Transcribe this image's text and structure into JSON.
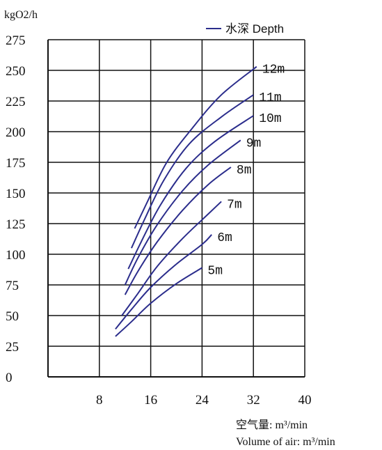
{
  "chart_data": {
    "type": "line",
    "ylabel": "kgO2/h",
    "legend_title": "水深 Depth",
    "legend_position": "top-right",
    "xlabel_line1": "空气量:  m³/min",
    "xlabel_line2": "Volume of air: m³/min",
    "xlim": [
      0,
      40
    ],
    "ylim": [
      0,
      275
    ],
    "x_ticks": [
      "8",
      "16",
      "24",
      "32",
      "40"
    ],
    "y_ticks": [
      "0",
      "25",
      "50",
      "75",
      "100",
      "125",
      "150",
      "175",
      "200",
      "225",
      "250",
      "275"
    ],
    "grid": true,
    "line_color": "#2b2d8c",
    "series": [
      {
        "name": "5m",
        "x": [
          10.5,
          13,
          16,
          20,
          24
        ],
        "y": [
          33,
          45,
          60,
          76,
          89
        ]
      },
      {
        "name": "6m",
        "x": [
          10.5,
          13,
          16,
          20,
          24,
          25.5
        ],
        "y": [
          39,
          55,
          73,
          92,
          108,
          116
        ]
      },
      {
        "name": "7m",
        "x": [
          11.5,
          14,
          17,
          21,
          25,
          27
        ],
        "y": [
          50,
          68,
          90,
          113,
          133,
          143
        ]
      },
      {
        "name": "8m",
        "x": [
          12,
          14,
          17,
          21,
          25,
          28.5
        ],
        "y": [
          67,
          86,
          110,
          136,
          157,
          171
        ]
      },
      {
        "name": "9m",
        "x": [
          12,
          14,
          17,
          21,
          25,
          30
        ],
        "y": [
          75,
          97,
          124,
          152,
          173,
          193
        ]
      },
      {
        "name": "10m",
        "x": [
          12.5,
          14.5,
          17.5,
          21.5,
          26,
          32
        ],
        "y": [
          88,
          110,
          140,
          170,
          192,
          213
        ]
      },
      {
        "name": "11m",
        "x": [
          13,
          15,
          18,
          22,
          27,
          32
        ],
        "y": [
          105,
          128,
          160,
          190,
          212,
          230
        ]
      },
      {
        "name": "12m",
        "x": [
          13.5,
          15.5,
          18.5,
          22.5,
          27,
          32.5
        ],
        "y": [
          121,
          143,
          175,
          203,
          230,
          253
        ]
      }
    ]
  }
}
